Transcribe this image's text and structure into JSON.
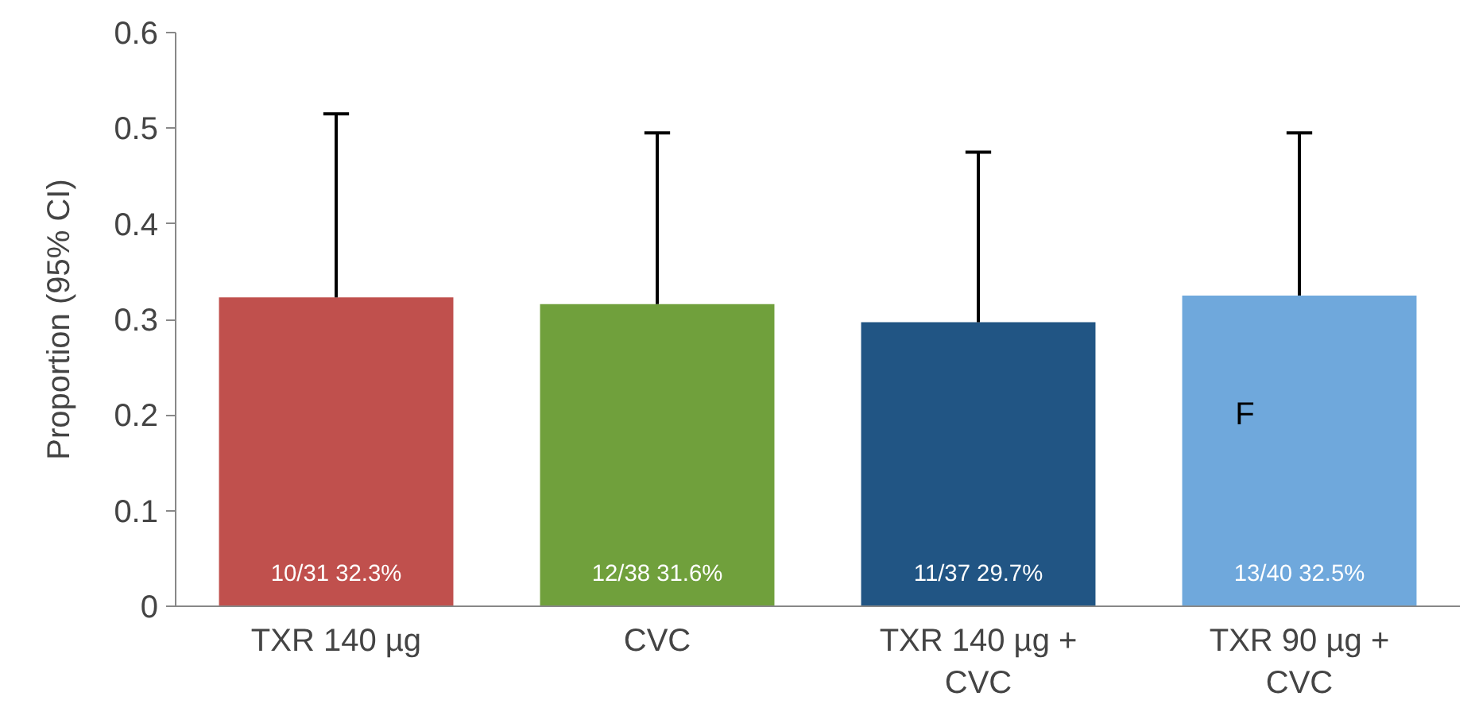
{
  "chart_data": {
    "type": "bar",
    "ylabel": "Proportion (95% CI)",
    "categories": [
      "TXR 140 µg",
      "CVC",
      "TXR 140 µg + CVC",
      "TXR 90 µg + CVC"
    ],
    "values": [
      0.323,
      0.316,
      0.297,
      0.325
    ],
    "colors": [
      "#c0504d",
      "#70a03c",
      "#215584",
      "#6fa8dc"
    ],
    "errors": [
      [
        0.323,
        0.515
      ],
      [
        0.316,
        0.495
      ],
      [
        0.297,
        0.475
      ],
      [
        0.325,
        0.495
      ]
    ],
    "value_labels": [
      "10/31 32.3%",
      "12/38 31.6%",
      "11/37 29.7%",
      "13/40 32.5%"
    ],
    "ylim": [
      0,
      0.6
    ],
    "yticks": [
      0,
      0.1,
      0.2,
      0.3,
      0.4,
      0.5,
      0.6
    ],
    "annotations": [
      "F"
    ],
    "grid": false
  }
}
